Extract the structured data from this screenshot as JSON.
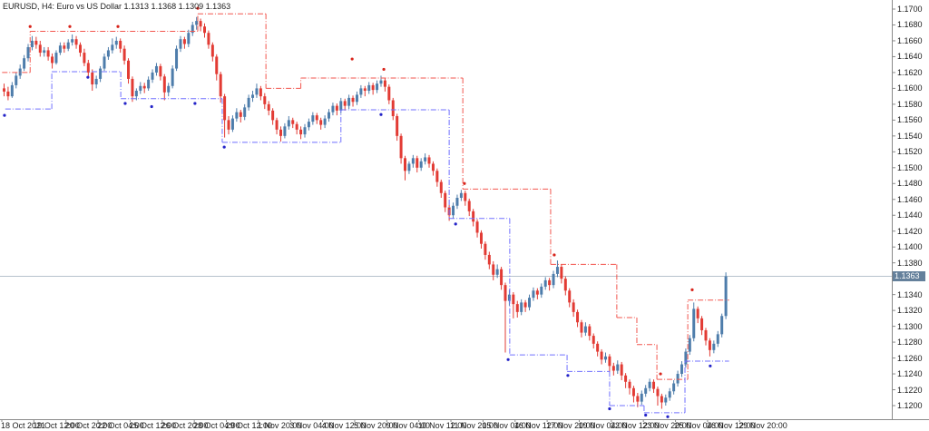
{
  "header": {
    "title": "EURUSD, H4: Euro vs US Dollar 1.1313 1.1368 1.1309 1.1363"
  },
  "chart_data": {
    "type": "candlestick",
    "symbol": "EURUSD",
    "timeframe": "H4",
    "description": "Euro vs US Dollar",
    "ohlc_display": {
      "open": "1.1313",
      "high": "1.1368",
      "low": "1.1309",
      "close": "1.1363"
    },
    "current_price": "1.1363",
    "current_price_value": 1.1363,
    "y_axis": {
      "min": 1.12,
      "max": 1.17,
      "tick_step": 0.002,
      "labels": [
        "1.1700",
        "1.1680",
        "1.1660",
        "1.1640",
        "1.1620",
        "1.1600",
        "1.1580",
        "1.1560",
        "1.1540",
        "1.1520",
        "1.1500",
        "1.1480",
        "1.1460",
        "1.1440",
        "1.1420",
        "1.1400",
        "1.1380",
        "1.1360",
        "1.1340",
        "1.1320",
        "1.1300",
        "1.1280",
        "1.1260",
        "1.1240",
        "1.1220",
        "1.1200"
      ]
    },
    "x_axis": {
      "labels": [
        "18 Oct 2021",
        "19 Oct 12:00",
        "20 Oct 20:00",
        "22 Oct 04:00",
        "25 Oct 12:00",
        "26 Oct 20:00",
        "28 Oct 04:00",
        "29 Oct 12:00",
        "1 Nov 20:00",
        "3 Nov 04:00",
        "4 Nov 12:00",
        "5 Nov 20:00",
        "9 Nov 04:00",
        "10 Nov 12:00",
        "11 Nov 20:00",
        "15 Nov 04:00",
        "16 Nov 12:00",
        "17 Nov 20:00",
        "19 Nov 04:00",
        "22 Nov 12:00",
        "23 Nov 20:00",
        "25 Nov 04:00",
        "26 Nov 12:00",
        "29 Nov 20:00"
      ],
      "bars_per_label": 8
    },
    "candles": [
      [
        1.16,
        1.1606,
        1.159,
        1.1596
      ],
      [
        1.1596,
        1.1602,
        1.1585,
        1.159
      ],
      [
        1.159,
        1.1608,
        1.1588,
        1.1604
      ],
      [
        1.1604,
        1.162,
        1.16,
        1.1616
      ],
      [
        1.1616,
        1.163,
        1.1612,
        1.1625
      ],
      [
        1.1625,
        1.1642,
        1.1622,
        1.1638
      ],
      [
        1.1638,
        1.1656,
        1.1634,
        1.1652
      ],
      [
        1.1652,
        1.1666,
        1.1648,
        1.166
      ],
      [
        1.166,
        1.1665,
        1.165,
        1.1655
      ],
      [
        1.1655,
        1.166,
        1.164,
        1.1645
      ],
      [
        1.1645,
        1.1652,
        1.164,
        1.1648
      ],
      [
        1.1648,
        1.1652,
        1.1635,
        1.164
      ],
      [
        1.164,
        1.1644,
        1.1625,
        1.1632
      ],
      [
        1.1632,
        1.1648,
        1.163,
        1.1645
      ],
      [
        1.1645,
        1.1658,
        1.1642,
        1.1654
      ],
      [
        1.1654,
        1.1658,
        1.1645,
        1.165
      ],
      [
        1.165,
        1.1662,
        1.1647,
        1.1658
      ],
      [
        1.1658,
        1.1668,
        1.1654,
        1.1662
      ],
      [
        1.1662,
        1.1666,
        1.165,
        1.1655
      ],
      [
        1.1655,
        1.1658,
        1.164,
        1.1645
      ],
      [
        1.1645,
        1.165,
        1.1628,
        1.1632
      ],
      [
        1.1632,
        1.1636,
        1.1615,
        1.162
      ],
      [
        1.162,
        1.1624,
        1.1597,
        1.1605
      ],
      [
        1.1605,
        1.1616,
        1.16,
        1.1612
      ],
      [
        1.1612,
        1.1628,
        1.1608,
        1.1625
      ],
      [
        1.1625,
        1.1644,
        1.1622,
        1.164
      ],
      [
        1.164,
        1.1652,
        1.1636,
        1.1648
      ],
      [
        1.1648,
        1.1663,
        1.1644,
        1.1655
      ],
      [
        1.1655,
        1.1665,
        1.165,
        1.166
      ],
      [
        1.166,
        1.1663,
        1.1645,
        1.165
      ],
      [
        1.165,
        1.1654,
        1.163,
        1.1635
      ],
      [
        1.1635,
        1.1638,
        1.1606,
        1.1612
      ],
      [
        1.1612,
        1.1615,
        1.1583,
        1.159
      ],
      [
        1.159,
        1.16,
        1.1585,
        1.1597
      ],
      [
        1.1597,
        1.1608,
        1.1593,
        1.1603
      ],
      [
        1.1603,
        1.1607,
        1.1594,
        1.16
      ],
      [
        1.16,
        1.1615,
        1.1597,
        1.1611
      ],
      [
        1.1611,
        1.1624,
        1.1607,
        1.162
      ],
      [
        1.162,
        1.1632,
        1.1616,
        1.1628
      ],
      [
        1.1628,
        1.1631,
        1.161,
        1.1615
      ],
      [
        1.1615,
        1.1618,
        1.1585,
        1.1595
      ],
      [
        1.1595,
        1.1607,
        1.159,
        1.1603
      ],
      [
        1.1603,
        1.1629,
        1.16,
        1.1625
      ],
      [
        1.1625,
        1.1654,
        1.1622,
        1.165
      ],
      [
        1.165,
        1.1666,
        1.1646,
        1.1662
      ],
      [
        1.1662,
        1.1665,
        1.165,
        1.1656
      ],
      [
        1.1656,
        1.1674,
        1.1652,
        1.167
      ],
      [
        1.167,
        1.1684,
        1.1666,
        1.168
      ],
      [
        1.168,
        1.169,
        1.1674,
        1.1685
      ],
      [
        1.1685,
        1.1688,
        1.1672,
        1.1678
      ],
      [
        1.1678,
        1.1682,
        1.1664,
        1.167
      ],
      [
        1.167,
        1.1673,
        1.165,
        1.1655
      ],
      [
        1.1655,
        1.1658,
        1.1634,
        1.164
      ],
      [
        1.164,
        1.1643,
        1.161,
        1.1618
      ],
      [
        1.1618,
        1.1621,
        1.1582,
        1.159
      ],
      [
        1.159,
        1.1593,
        1.1538,
        1.156
      ],
      [
        1.156,
        1.1565,
        1.1542,
        1.1548
      ],
      [
        1.1548,
        1.1566,
        1.1545,
        1.1562
      ],
      [
        1.1562,
        1.1575,
        1.1558,
        1.157
      ],
      [
        1.157,
        1.1573,
        1.1557,
        1.1564
      ],
      [
        1.1564,
        1.158,
        1.156,
        1.1576
      ],
      [
        1.1576,
        1.1592,
        1.1572,
        1.1588
      ],
      [
        1.1588,
        1.1597,
        1.1583,
        1.1592
      ],
      [
        1.1592,
        1.1606,
        1.1588,
        1.16
      ],
      [
        1.16,
        1.1603,
        1.1585,
        1.159
      ],
      [
        1.159,
        1.1594,
        1.1574,
        1.158
      ],
      [
        1.158,
        1.1584,
        1.1566,
        1.1572
      ],
      [
        1.1572,
        1.1575,
        1.1554,
        1.156
      ],
      [
        1.156,
        1.1563,
        1.1542,
        1.1548
      ],
      [
        1.1548,
        1.1552,
        1.1533,
        1.154
      ],
      [
        1.154,
        1.1556,
        1.1537,
        1.1552
      ],
      [
        1.1552,
        1.1565,
        1.1548,
        1.156
      ],
      [
        1.156,
        1.1563,
        1.155,
        1.1555
      ],
      [
        1.1555,
        1.1558,
        1.1542,
        1.1548
      ],
      [
        1.1548,
        1.1552,
        1.1536,
        1.1542
      ],
      [
        1.1542,
        1.1555,
        1.1538,
        1.1551
      ],
      [
        1.1551,
        1.1562,
        1.1547,
        1.1558
      ],
      [
        1.1558,
        1.157,
        1.1554,
        1.1566
      ],
      [
        1.1566,
        1.1569,
        1.1555,
        1.156
      ],
      [
        1.156,
        1.1563,
        1.1548,
        1.1554
      ],
      [
        1.1554,
        1.1566,
        1.155,
        1.1562
      ],
      [
        1.1562,
        1.1574,
        1.1558,
        1.157
      ],
      [
        1.157,
        1.1582,
        1.1566,
        1.1578
      ],
      [
        1.1578,
        1.1581,
        1.1566,
        1.1572
      ],
      [
        1.1572,
        1.1588,
        1.1568,
        1.1584
      ],
      [
        1.1584,
        1.1587,
        1.1572,
        1.1578
      ],
      [
        1.1578,
        1.1592,
        1.1574,
        1.1588
      ],
      [
        1.1588,
        1.1591,
        1.1577,
        1.1583
      ],
      [
        1.1583,
        1.1596,
        1.1579,
        1.1592
      ],
      [
        1.1592,
        1.1604,
        1.1588,
        1.16
      ],
      [
        1.16,
        1.1603,
        1.159,
        1.1597
      ],
      [
        1.1597,
        1.1608,
        1.1593,
        1.1604
      ],
      [
        1.1604,
        1.1607,
        1.1592,
        1.1598
      ],
      [
        1.1598,
        1.161,
        1.1594,
        1.1606
      ],
      [
        1.1606,
        1.1616,
        1.1602,
        1.161
      ],
      [
        1.161,
        1.1613,
        1.1596,
        1.1602
      ],
      [
        1.1602,
        1.1605,
        1.158,
        1.1585
      ],
      [
        1.1585,
        1.1588,
        1.156,
        1.1565
      ],
      [
        1.1565,
        1.1568,
        1.1534,
        1.154
      ],
      [
        1.154,
        1.1543,
        1.1505,
        1.1512
      ],
      [
        1.1512,
        1.1515,
        1.1484,
        1.1496
      ],
      [
        1.1496,
        1.1508,
        1.1492,
        1.1505
      ],
      [
        1.1505,
        1.1516,
        1.15,
        1.1512
      ],
      [
        1.1512,
        1.1515,
        1.1494,
        1.15
      ],
      [
        1.15,
        1.1512,
        1.1496,
        1.1508
      ],
      [
        1.1508,
        1.1518,
        1.1504,
        1.1513
      ],
      [
        1.1513,
        1.1516,
        1.15,
        1.1505
      ],
      [
        1.1505,
        1.1508,
        1.149,
        1.1496
      ],
      [
        1.1496,
        1.1499,
        1.1476,
        1.1482
      ],
      [
        1.1482,
        1.1485,
        1.1462,
        1.1468
      ],
      [
        1.1468,
        1.1471,
        1.1444,
        1.145
      ],
      [
        1.145,
        1.1453,
        1.1433,
        1.144
      ],
      [
        1.144,
        1.1456,
        1.1436,
        1.1452
      ],
      [
        1.1452,
        1.1466,
        1.1448,
        1.1462
      ],
      [
        1.1462,
        1.1472,
        1.1458,
        1.1468
      ],
      [
        1.1468,
        1.1471,
        1.1452,
        1.1458
      ],
      [
        1.1458,
        1.1461,
        1.1439,
        1.1445
      ],
      [
        1.1445,
        1.1448,
        1.1426,
        1.1432
      ],
      [
        1.1432,
        1.1435,
        1.1412,
        1.1418
      ],
      [
        1.1418,
        1.1421,
        1.1398,
        1.1404
      ],
      [
        1.1404,
        1.1407,
        1.1384,
        1.139
      ],
      [
        1.139,
        1.1394,
        1.1372,
        1.1378
      ],
      [
        1.1378,
        1.1382,
        1.1358,
        1.1365
      ],
      [
        1.1365,
        1.1378,
        1.1361,
        1.1372
      ],
      [
        1.1372,
        1.1375,
        1.1346,
        1.1352
      ],
      [
        1.1352,
        1.1355,
        1.1267,
        1.1332
      ],
      [
        1.1332,
        1.1346,
        1.1326,
        1.134
      ],
      [
        1.134,
        1.1343,
        1.131,
        1.1328
      ],
      [
        1.1328,
        1.1332,
        1.1311,
        1.1318
      ],
      [
        1.1318,
        1.1334,
        1.1314,
        1.133
      ],
      [
        1.133,
        1.1333,
        1.1318,
        1.1324
      ],
      [
        1.1324,
        1.134,
        1.132,
        1.1336
      ],
      [
        1.1336,
        1.1349,
        1.1332,
        1.1345
      ],
      [
        1.1345,
        1.1348,
        1.1334,
        1.134
      ],
      [
        1.134,
        1.1354,
        1.1336,
        1.135
      ],
      [
        1.135,
        1.1362,
        1.1346,
        1.1358
      ],
      [
        1.1358,
        1.1361,
        1.1345,
        1.1352
      ],
      [
        1.1352,
        1.137,
        1.1348,
        1.1366
      ],
      [
        1.1366,
        1.1383,
        1.1362,
        1.1375
      ],
      [
        1.1375,
        1.1378,
        1.1354,
        1.136
      ],
      [
        1.136,
        1.1363,
        1.1339,
        1.1345
      ],
      [
        1.1345,
        1.1348,
        1.1324,
        1.133
      ],
      [
        1.133,
        1.1334,
        1.1312,
        1.1318
      ],
      [
        1.1318,
        1.1321,
        1.1299,
        1.1305
      ],
      [
        1.1305,
        1.1308,
        1.1286,
        1.1292
      ],
      [
        1.1292,
        1.1305,
        1.1288,
        1.13
      ],
      [
        1.13,
        1.1303,
        1.1282,
        1.1288
      ],
      [
        1.1288,
        1.1291,
        1.1272,
        1.1278
      ],
      [
        1.1278,
        1.1281,
        1.1262,
        1.1268
      ],
      [
        1.1268,
        1.1271,
        1.1252,
        1.1258
      ],
      [
        1.1258,
        1.1267,
        1.1254,
        1.1262
      ],
      [
        1.1262,
        1.1265,
        1.1242,
        1.125
      ],
      [
        1.125,
        1.1254,
        1.1238,
        1.1244
      ],
      [
        1.1244,
        1.1257,
        1.124,
        1.1252
      ],
      [
        1.1252,
        1.1255,
        1.1232,
        1.1238
      ],
      [
        1.1238,
        1.1241,
        1.1222,
        1.123
      ],
      [
        1.123,
        1.1233,
        1.1214,
        1.1222
      ],
      [
        1.1222,
        1.1225,
        1.1204,
        1.1212
      ],
      [
        1.1212,
        1.1216,
        1.1198,
        1.1205
      ],
      [
        1.1205,
        1.1219,
        1.1201,
        1.1215
      ],
      [
        1.1215,
        1.1226,
        1.1211,
        1.1222
      ],
      [
        1.1222,
        1.1234,
        1.1218,
        1.123
      ],
      [
        1.123,
        1.1233,
        1.1216,
        1.1221
      ],
      [
        1.1221,
        1.1224,
        1.12,
        1.1212
      ],
      [
        1.1212,
        1.1215,
        1.1196,
        1.1204
      ],
      [
        1.1204,
        1.1214,
        1.12,
        1.121
      ],
      [
        1.121,
        1.1222,
        1.1206,
        1.1218
      ],
      [
        1.1218,
        1.1232,
        1.1214,
        1.1228
      ],
      [
        1.1228,
        1.1244,
        1.1224,
        1.124
      ],
      [
        1.124,
        1.1256,
        1.1236,
        1.1252
      ],
      [
        1.1252,
        1.1272,
        1.1248,
        1.1268
      ],
      [
        1.1268,
        1.1289,
        1.1264,
        1.1285
      ],
      [
        1.1285,
        1.133,
        1.1281,
        1.1322
      ],
      [
        1.1322,
        1.1325,
        1.1304,
        1.131
      ],
      [
        1.131,
        1.1313,
        1.1289,
        1.1295
      ],
      [
        1.1295,
        1.1298,
        1.1276,
        1.1282
      ],
      [
        1.1282,
        1.1285,
        1.1262,
        1.127
      ],
      [
        1.127,
        1.1282,
        1.1266,
        1.1278
      ],
      [
        1.1278,
        1.1294,
        1.1274,
        1.129
      ],
      [
        1.129,
        1.1316,
        1.1286,
        1.1313
      ],
      [
        1.1313,
        1.1368,
        1.1309,
        1.1363
      ]
    ],
    "indicator": {
      "style": "step-channel-dash-dot-with-fractal-dots",
      "upper_steps": [
        [
          1.162,
          -0.5,
          6.5
        ],
        [
          1.1672,
          6.5,
          48.3
        ],
        [
          1.1694,
          48.3,
          65.3
        ],
        [
          1.16,
          65.3,
          74.0
        ],
        [
          1.1613,
          74.0,
          114.4
        ],
        [
          1.1473,
          114.4,
          136.3
        ],
        [
          1.1378,
          136.3,
          152.8
        ],
        [
          1.1311,
          152.8,
          157.8
        ],
        [
          1.1277,
          157.8,
          162.8
        ],
        [
          1.1233,
          162.8,
          170.5
        ],
        [
          1.1333,
          170.5,
          180.8
        ]
      ],
      "lower_steps": [
        [
          1.1574,
          0.3,
          11.9
        ],
        [
          1.1621,
          11.9,
          29.1
        ],
        [
          1.1587,
          29.1,
          54.4
        ],
        [
          1.1532,
          54.4,
          84.0
        ],
        [
          1.1573,
          84.0,
          111.0
        ],
        [
          1.1436,
          111.0,
          126.1
        ],
        [
          1.1264,
          126.1,
          140.4
        ],
        [
          1.1243,
          140.4,
          151.0
        ],
        [
          1.12,
          151.0,
          159.6
        ],
        [
          1.1191,
          159.6,
          169.8
        ],
        [
          1.1256,
          169.8,
          180.8
        ]
      ],
      "upper_dots": [
        [
          6.5,
          1.1678
        ],
        [
          16.4,
          1.1678
        ],
        [
          28.4,
          1.1678
        ],
        [
          48.3,
          1.1701
        ],
        [
          86.8,
          1.1637
        ],
        [
          94.7,
          1.1624
        ],
        [
          114.8,
          1.148
        ],
        [
          137.2,
          1.139
        ],
        [
          163.7,
          1.124
        ],
        [
          171.6,
          1.1346
        ]
      ],
      "lower_dots": [
        [
          0.1,
          1.1566
        ],
        [
          20.9,
          1.1614
        ],
        [
          30.2,
          1.1581
        ],
        [
          36.8,
          1.1577
        ],
        [
          47.6,
          1.1581
        ],
        [
          54.9,
          1.1526
        ],
        [
          94.0,
          1.1567
        ],
        [
          112.6,
          1.1429
        ],
        [
          125.7,
          1.1258
        ],
        [
          140.6,
          1.1238
        ],
        [
          151.0,
          1.1196
        ],
        [
          160.0,
          1.1188
        ],
        [
          165.5,
          1.1186
        ],
        [
          176.1,
          1.125
        ]
      ]
    },
    "colors": {
      "background": "#ffffff",
      "bull": "#4e7dab",
      "bear": "#e23b34",
      "upper_line": "#f2564e",
      "lower_line": "#7070ff",
      "upper_dot": "#d8241b",
      "lower_dot": "#2424c8",
      "price_line": "#b6c2cc",
      "price_label_bg": "#64809b",
      "axis": "#8a8a8a",
      "text": "#1c1c1c"
    },
    "legend": "none",
    "grid": false
  }
}
